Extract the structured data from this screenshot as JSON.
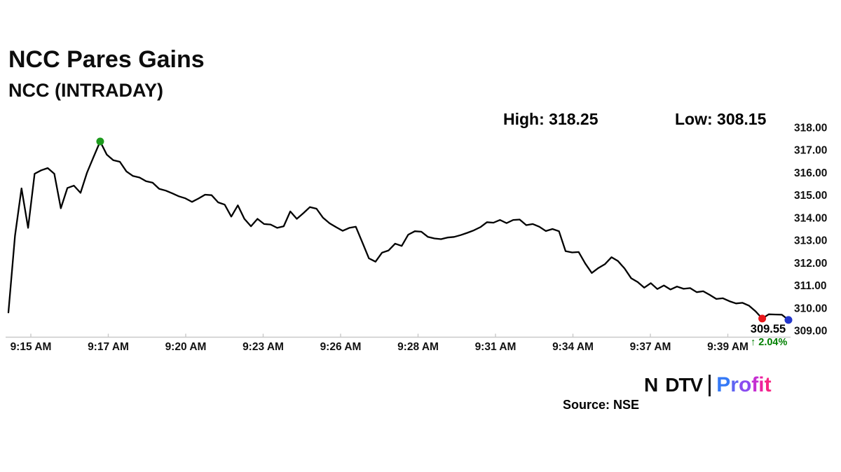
{
  "header": {
    "title": "NCC Pares Gains",
    "subtitle": "NCC (INTRADAY)",
    "high_label": "High: 318.25",
    "low_label": "Low: 308.15"
  },
  "footer": {
    "source": "Source: NSE"
  },
  "logo": {
    "ndtv_left": "N",
    "ndtv_right": "DTV",
    "dot_color": "#e8112d",
    "profit_text": "Profit",
    "profit_letter_colors": [
      "#3579f6",
      "#5f63f2",
      "#8a4cf0",
      "#c52fd2",
      "#ec22a0",
      "#f72585"
    ]
  },
  "chart_data": {
    "type": "line",
    "title": "NCC Pares Gains",
    "subtitle": "NCC (INTRADAY)",
    "stats": {
      "high": 318.25,
      "low": 308.15,
      "last": 309.55,
      "change": "↑ 2.04%"
    },
    "line_color": "#000000",
    "axis_color": "#c9c9c9",
    "label_color": "#111111",
    "peak_marker_color": "#1d9b1d",
    "last_marker_color": "#e8161a",
    "end_marker_color": "#2336cc",
    "change_color": "#008000",
    "last_price_label": "309.55",
    "x_labels": [
      "9:15 AM",
      "9:17 AM",
      "9:20 AM",
      "9:23 AM",
      "9:26 AM",
      "9:28 AM",
      "9:31 AM",
      "9:34 AM",
      "9:37 AM",
      "9:39 AM"
    ],
    "y_ticks": [
      318,
      317,
      316,
      315,
      314,
      313,
      312,
      311,
      310,
      309
    ],
    "ylim": [
      309,
      318
    ],
    "grid": false,
    "legend": false,
    "y_axis_side": "right",
    "marker_indexes": {
      "peak": 14,
      "last": 115,
      "end": 119
    },
    "prices": [
      309.8,
      313.2,
      315.3,
      313.55,
      315.95,
      316.1,
      316.2,
      315.95,
      314.42,
      315.32,
      315.42,
      315.1,
      316.0,
      316.7,
      317.38,
      316.8,
      316.55,
      316.48,
      316.05,
      315.85,
      315.78,
      315.62,
      315.55,
      315.28,
      315.2,
      315.08,
      314.95,
      314.86,
      314.7,
      314.85,
      315.02,
      315.0,
      314.68,
      314.58,
      314.05,
      314.55,
      313.95,
      313.62,
      313.95,
      313.72,
      313.7,
      313.55,
      313.62,
      314.28,
      313.95,
      314.2,
      314.47,
      314.4,
      314.0,
      313.75,
      313.58,
      313.42,
      313.55,
      313.6,
      312.9,
      312.2,
      312.05,
      312.45,
      312.55,
      312.85,
      312.75,
      313.25,
      313.4,
      313.38,
      313.15,
      313.08,
      313.05,
      313.12,
      313.15,
      313.23,
      313.33,
      313.44,
      313.58,
      313.8,
      313.78,
      313.9,
      313.76,
      313.9,
      313.92,
      313.67,
      313.72,
      313.6,
      313.41,
      313.5,
      313.4,
      312.52,
      312.46,
      312.48,
      311.97,
      311.55,
      311.77,
      311.94,
      312.25,
      312.08,
      311.75,
      311.32,
      311.15,
      310.9,
      311.1,
      310.84,
      311.0,
      310.82,
      310.95,
      310.85,
      310.88,
      310.7,
      310.74,
      310.58,
      310.4,
      310.43,
      310.3,
      310.2,
      310.23,
      310.1,
      309.85,
      309.53,
      309.72,
      309.71,
      309.7,
      309.47
    ]
  }
}
